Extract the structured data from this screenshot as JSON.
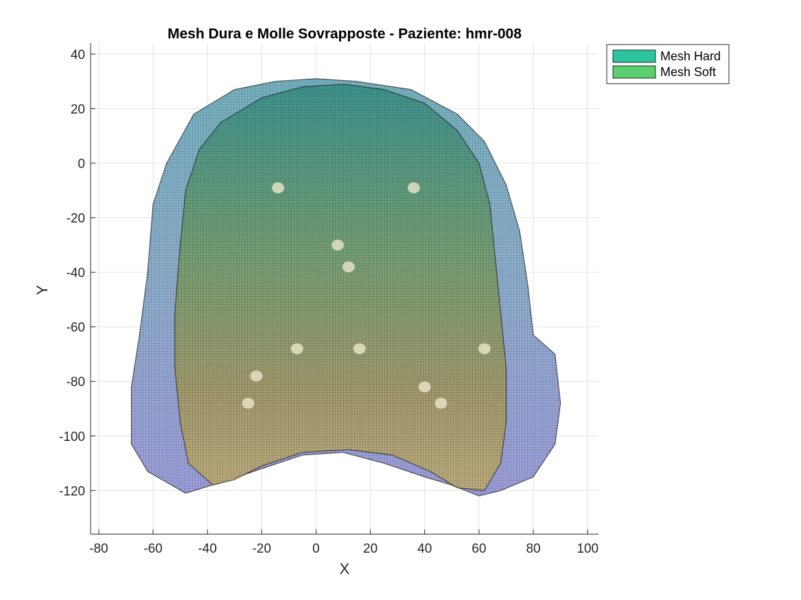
{
  "figure": {
    "title": "Mesh Dura e Molle Sovrapposte - Paziente: hmr-008"
  },
  "legend": {
    "items": [
      {
        "label": "Mesh Hard",
        "color": "#2ec4a0"
      },
      {
        "label": "Mesh Soft",
        "color": "#5ccf6e"
      }
    ]
  },
  "chart_data": {
    "type": "3d surface mesh (top view)",
    "title": "Mesh Dura e Molle Sovrapposte - Paziente: hmr-008",
    "xlabel": "X",
    "ylabel": "Y",
    "xlim": [
      -83,
      104
    ],
    "ylim": [
      -136,
      44
    ],
    "xticks": [
      -80,
      -60,
      -40,
      -20,
      0,
      20,
      40,
      60,
      80,
      100
    ],
    "yticks": [
      40,
      20,
      0,
      -20,
      -40,
      -60,
      -80,
      -100,
      -120
    ],
    "grid": true,
    "legend_position": "outside top-right",
    "series": [
      {
        "name": "Mesh Hard",
        "color": "#2ec4a0",
        "outline": [
          [
            -48,
            -121
          ],
          [
            -62,
            -113
          ],
          [
            -68,
            -103
          ],
          [
            -68,
            -82
          ],
          [
            -65,
            -63
          ],
          [
            -62,
            -40
          ],
          [
            -60,
            -15
          ],
          [
            -55,
            0
          ],
          [
            -45,
            18
          ],
          [
            -30,
            27
          ],
          [
            -15,
            30
          ],
          [
            0,
            31
          ],
          [
            15,
            30
          ],
          [
            35,
            27
          ],
          [
            52,
            18
          ],
          [
            62,
            8
          ],
          [
            70,
            -8
          ],
          [
            75,
            -25
          ],
          [
            78,
            -45
          ],
          [
            80,
            -63
          ],
          [
            88,
            -70
          ],
          [
            90,
            -88
          ],
          [
            88,
            -103
          ],
          [
            80,
            -115
          ],
          [
            68,
            -120
          ],
          [
            60,
            -122
          ],
          [
            50,
            -118
          ],
          [
            40,
            -115
          ],
          [
            25,
            -110
          ],
          [
            10,
            -106
          ],
          [
            -5,
            -107
          ],
          [
            -20,
            -112
          ],
          [
            -35,
            -117
          ],
          [
            -48,
            -121
          ]
        ]
      },
      {
        "name": "Mesh Soft",
        "color": "#5ccf6e",
        "outline": [
          [
            -38,
            -118
          ],
          [
            -47,
            -110
          ],
          [
            -50,
            -95
          ],
          [
            -52,
            -75
          ],
          [
            -52,
            -55
          ],
          [
            -50,
            -30
          ],
          [
            -48,
            -10
          ],
          [
            -43,
            5
          ],
          [
            -35,
            15
          ],
          [
            -20,
            24
          ],
          [
            -5,
            28
          ],
          [
            10,
            29
          ],
          [
            25,
            27
          ],
          [
            40,
            22
          ],
          [
            52,
            12
          ],
          [
            60,
            0
          ],
          [
            64,
            -15
          ],
          [
            66,
            -35
          ],
          [
            68,
            -55
          ],
          [
            70,
            -75
          ],
          [
            70,
            -95
          ],
          [
            68,
            -110
          ],
          [
            62,
            -120
          ],
          [
            52,
            -119
          ],
          [
            42,
            -113
          ],
          [
            28,
            -107
          ],
          [
            12,
            -105
          ],
          [
            -5,
            -106
          ],
          [
            -20,
            -111
          ],
          [
            -30,
            -116
          ],
          [
            -38,
            -118
          ]
        ]
      }
    ],
    "voids": [
      [
        8,
        -30
      ],
      [
        12,
        -38
      ],
      [
        -7,
        -68
      ],
      [
        16,
        -68
      ],
      [
        -22,
        -78
      ],
      [
        -25,
        -88
      ],
      [
        40,
        -82
      ],
      [
        46,
        -88
      ],
      [
        62,
        -68
      ],
      [
        -14,
        -9
      ],
      [
        36,
        -9
      ]
    ]
  }
}
